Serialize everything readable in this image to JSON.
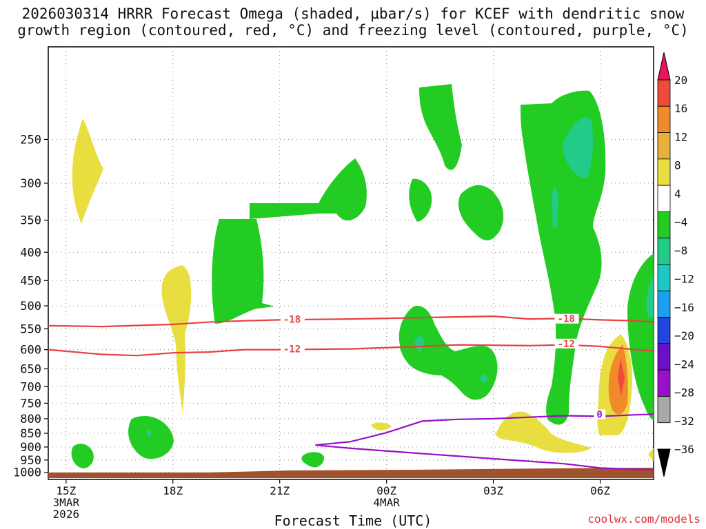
{
  "title": {
    "line1": "2026030314 HRRR Forecast Omega (shaded, µbar/s) for KCEF with dendritic snow",
    "line2": "growth region (contoured, red, °C) and freezing level (contoured, purple, °C)"
  },
  "credit": "coolwx.com/models",
  "chart_data": {
    "type": "heatmap",
    "title": "2026030314 HRRR Forecast Omega (shaded, µbar/s) for KCEF with dendritic snow growth region (contoured, red, °C) and freezing level (contoured, purple, °C)",
    "xlabel": "Forecast Time (UTC)",
    "ylabel": "",
    "x_range_hours": [
      -0.5,
      16.5
    ],
    "y_range_hPa": [
      1030,
      170
    ],
    "y_ticks": [
      250,
      300,
      350,
      400,
      450,
      500,
      550,
      600,
      650,
      700,
      750,
      800,
      850,
      900,
      950,
      1000
    ],
    "x_ticks": [
      {
        "hour": 0,
        "label": "15Z",
        "sub1": "3MAR",
        "sub2": "2026"
      },
      {
        "hour": 3,
        "label": "18Z",
        "sub1": "",
        "sub2": ""
      },
      {
        "hour": 6,
        "label": "21Z",
        "sub1": "",
        "sub2": ""
      },
      {
        "hour": 9,
        "label": "00Z",
        "sub1": "4MAR",
        "sub2": ""
      },
      {
        "hour": 12,
        "label": "03Z",
        "sub1": "",
        "sub2": ""
      },
      {
        "hour": 15,
        "label": "06Z",
        "sub1": "",
        "sub2": ""
      }
    ],
    "colorbar": {
      "labels": [
        "20",
        "16",
        "12",
        "8",
        "4",
        "−4",
        "−8",
        "−12",
        "−16",
        "−20",
        "−24",
        "−28",
        "−32",
        "−36"
      ],
      "colors": [
        "#e8155b",
        "#f04a3a",
        "#f08a2a",
        "#e8b23a",
        "#e8de40",
        "#ffffff",
        "#22cc22",
        "#22cc88",
        "#1cc8c8",
        "#1aa0f0",
        "#2244e0",
        "#6a10c8",
        "#9a10c8",
        "#a8a8a8",
        "#000000"
      ]
    },
    "contours": [
      {
        "name": "dgz-minus18",
        "label": "-18",
        "color": "#e84040",
        "points": [
          [
            -0.5,
            543
          ],
          [
            1,
            545
          ],
          [
            3,
            540
          ],
          [
            4,
            535
          ],
          [
            5,
            532
          ],
          [
            6,
            530
          ],
          [
            8,
            528
          ],
          [
            10,
            525
          ],
          [
            12,
            522
          ],
          [
            13,
            528
          ],
          [
            14,
            527
          ],
          [
            15,
            530
          ],
          [
            16,
            532
          ],
          [
            16.5,
            535
          ]
        ],
        "label_at": [
          6.1,
          533
        ]
      },
      {
        "name": "dgz-minus12",
        "label": "-12",
        "color": "#e84040",
        "points": [
          [
            -0.5,
            600
          ],
          [
            1,
            612
          ],
          [
            2,
            615
          ],
          [
            3,
            608
          ],
          [
            4,
            606
          ],
          [
            5,
            600
          ],
          [
            6,
            600
          ],
          [
            8,
            598
          ],
          [
            10,
            592
          ],
          [
            11,
            588
          ],
          [
            13,
            590
          ],
          [
            14,
            588
          ],
          [
            15,
            592
          ],
          [
            16,
            600
          ],
          [
            16.5,
            603
          ]
        ],
        "label_at": [
          6.1,
          603
        ]
      },
      {
        "name": "freezing-level",
        "label": "0",
        "color": "#9b10c8",
        "points": [
          [
            7.0,
            893
          ],
          [
            8,
            880
          ],
          [
            9,
            848
          ],
          [
            10,
            808
          ],
          [
            11,
            802
          ],
          [
            12,
            800
          ],
          [
            13,
            795
          ],
          [
            14,
            790
          ],
          [
            15,
            792
          ],
          [
            16,
            787
          ],
          [
            16.5,
            785
          ]
        ],
        "label_at": [
          14.9,
          792
        ]
      },
      {
        "name": "lower-zero-line",
        "label": "",
        "color": "#9b10c8",
        "points": [
          [
            7.0,
            893
          ],
          [
            8,
            905
          ],
          [
            10,
            925
          ],
          [
            12,
            945
          ],
          [
            14,
            965
          ],
          [
            15,
            982
          ],
          [
            16.5,
            990
          ]
        ],
        "label_at": null
      }
    ],
    "omega_regions": [
      {
        "name": "upward-motion-cells-minus4-to-minus8",
        "value_range": [
          -8,
          -4
        ],
        "color": "#22cc22",
        "shapes": [
          "sfc-cell-near-16Z",
          "midlevel-cell-19Z-20Z",
          "shear-band-21Z-23Z",
          "cells-00Z-02Z",
          "cell-02Z-03Z-low",
          "deep-column-04Z-07Z",
          "cell-07Z-08Z-midlevel"
        ]
      },
      {
        "name": "downward-motion-cells-4-to-8",
        "value_range": [
          4,
          8
        ],
        "color": "#e8de40",
        "shapes": [
          "upper-cell-15Z",
          "cell-18Z",
          "low-cell-03Z-06Z"
        ]
      },
      {
        "name": "strong-downward-cell",
        "value_range": [
          8,
          16
        ],
        "color": "#f08a2a",
        "shapes": [
          "cell-near-07Z"
        ]
      }
    ]
  },
  "terrain_color": "#a0522d"
}
